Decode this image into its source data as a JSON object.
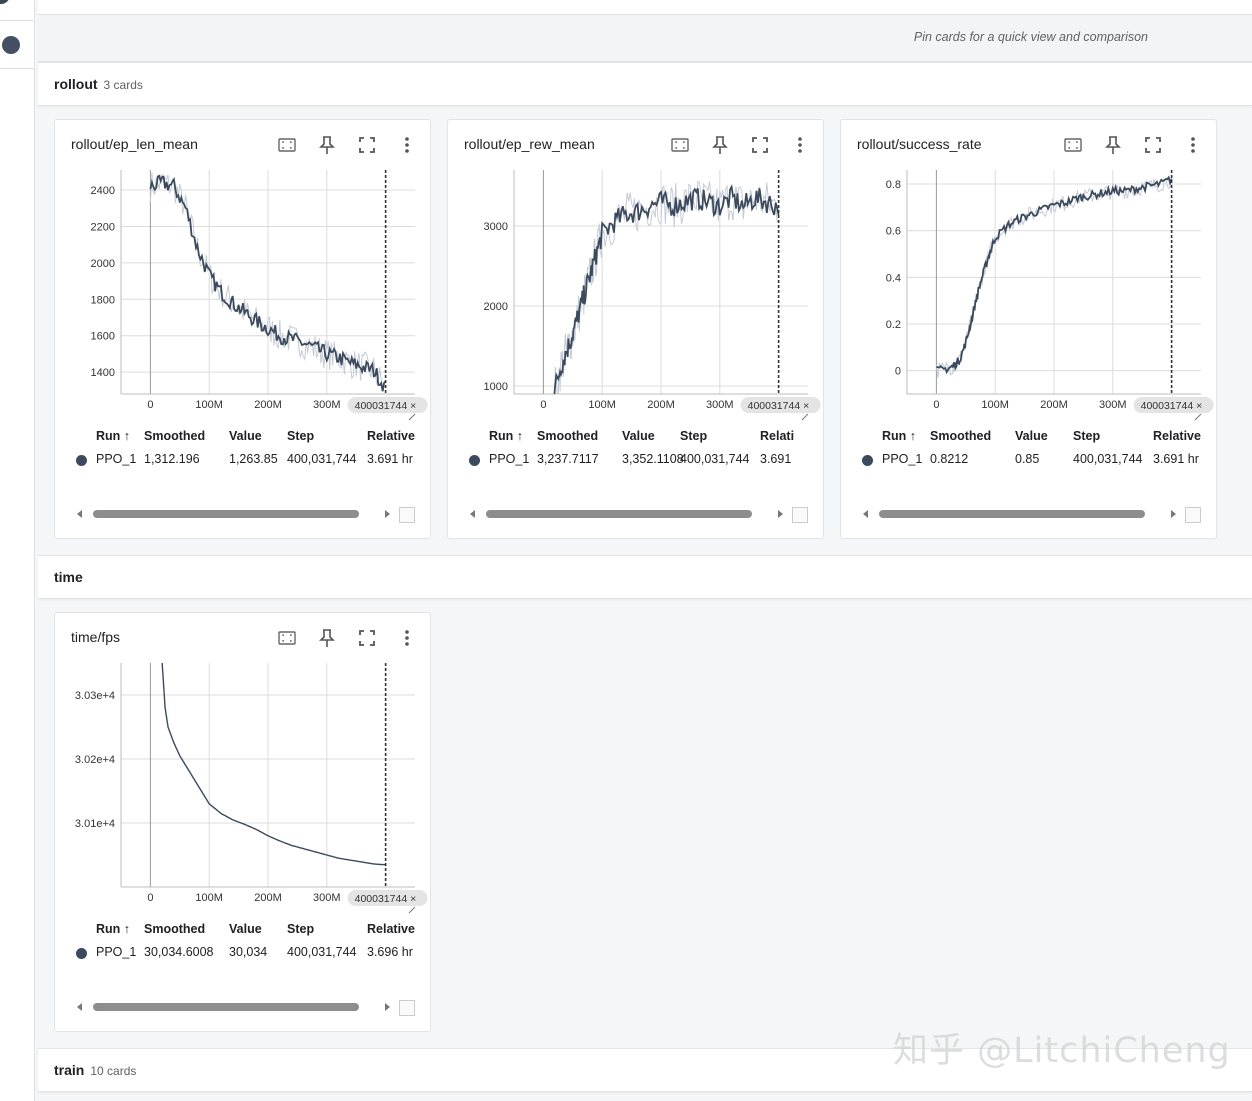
{
  "pin_hint": "Pin cards for a quick view and comparison",
  "groups": [
    {
      "name": "rollout",
      "count": "3 cards"
    },
    {
      "name": "time",
      "count": ""
    },
    {
      "name": "train",
      "count": "10 cards"
    }
  ],
  "table_headers": {
    "run": "Run ↑",
    "smoothed": "Smoothed",
    "value": "Value",
    "step": "Step",
    "relative": "Relative"
  },
  "step_chip": "400031744 ×",
  "x_ticks": [
    "0",
    "100M",
    "200M",
    "300M"
  ],
  "run_color": "#3c4a5e",
  "raw_color": "#c5cbd5",
  "cards": [
    {
      "title": "rollout/ep_len_mean",
      "row": {
        "run": "PPO_1",
        "smoothed": "1,312.196",
        "value": "1,263.85",
        "step": "400,031,744",
        "relative": "3.691 hr"
      },
      "y_ticks": [
        "2400",
        "2200",
        "2000",
        "1800",
        "1600",
        "1400"
      ]
    },
    {
      "title": "rollout/ep_rew_mean",
      "row": {
        "run": "PPO_1",
        "smoothed": "3,237.7117",
        "value": "3,352.1108",
        "step": "400,031,744",
        "relative": "3.691"
      },
      "relative_header": "Relati",
      "y_ticks": [
        "3000",
        "2000",
        "1000"
      ]
    },
    {
      "title": "rollout/success_rate",
      "row": {
        "run": "PPO_1",
        "smoothed": "0.8212",
        "value": "0.85",
        "step": "400,031,744",
        "relative": "3.691 hr"
      },
      "y_ticks": [
        "0.8",
        "0.6",
        "0.4",
        "0.2",
        "0"
      ]
    },
    {
      "title": "time/fps",
      "row": {
        "run": "PPO_1",
        "smoothed": "30,034.6008",
        "value": "30,034",
        "step": "400,031,744",
        "relative": "3.696 hr"
      },
      "y_ticks": [
        "3.03e+4",
        "3.02e+4",
        "3.01e+4"
      ]
    }
  ],
  "chart_data": [
    {
      "type": "line",
      "title": "rollout/ep_len_mean",
      "x_unit": "steps",
      "xlim": [
        -50000000,
        450000000
      ],
      "ylim": [
        1280,
        2510
      ],
      "x_ticks": [
        0,
        100000000,
        200000000,
        300000000
      ],
      "series": [
        {
          "name": "PPO_1",
          "x": [
            0,
            20000000,
            40000000,
            60000000,
            80000000,
            100000000,
            120000000,
            140000000,
            160000000,
            180000000,
            200000000,
            220000000,
            240000000,
            260000000,
            280000000,
            300000000,
            320000000,
            340000000,
            360000000,
            380000000,
            400031744
          ],
          "y": [
            2420,
            2440,
            2420,
            2300,
            2080,
            1930,
            1840,
            1780,
            1730,
            1680,
            1640,
            1600,
            1580,
            1560,
            1530,
            1500,
            1480,
            1450,
            1430,
            1410,
            1312
          ]
        }
      ]
    },
    {
      "type": "line",
      "title": "rollout/ep_rew_mean",
      "x_unit": "steps",
      "xlim": [
        -50000000,
        450000000
      ],
      "ylim": [
        900,
        3700
      ],
      "x_ticks": [
        0,
        100000000,
        200000000,
        300000000
      ],
      "series": [
        {
          "name": "PPO_1",
          "x": [
            17000000,
            30000000,
            40000000,
            50000000,
            60000000,
            70000000,
            80000000,
            90000000,
            100000000,
            120000000,
            140000000,
            160000000,
            180000000,
            200000000,
            220000000,
            240000000,
            260000000,
            280000000,
            300000000,
            320000000,
            340000000,
            360000000,
            380000000,
            400031744
          ],
          "y": [
            900,
            1250,
            1450,
            1650,
            1900,
            2150,
            2400,
            2650,
            2900,
            3050,
            3150,
            3180,
            3250,
            3300,
            3250,
            3300,
            3350,
            3300,
            3250,
            3350,
            3250,
            3350,
            3300,
            3237
          ]
        }
      ]
    },
    {
      "type": "line",
      "title": "rollout/success_rate",
      "x_unit": "steps",
      "xlim": [
        -50000000,
        450000000
      ],
      "ylim": [
        -0.1,
        0.86
      ],
      "x_ticks": [
        0,
        100000000,
        200000000,
        300000000
      ],
      "series": [
        {
          "name": "PPO_1",
          "x": [
            0,
            20000000,
            30000000,
            40000000,
            50000000,
            60000000,
            70000000,
            80000000,
            90000000,
            100000000,
            120000000,
            140000000,
            160000000,
            180000000,
            200000000,
            220000000,
            240000000,
            260000000,
            280000000,
            300000000,
            320000000,
            340000000,
            360000000,
            380000000,
            400031744
          ],
          "y": [
            0,
            0.01,
            0.02,
            0.05,
            0.12,
            0.22,
            0.33,
            0.42,
            0.5,
            0.57,
            0.62,
            0.65,
            0.67,
            0.69,
            0.71,
            0.72,
            0.74,
            0.75,
            0.76,
            0.77,
            0.77,
            0.78,
            0.79,
            0.8,
            0.8212
          ]
        }
      ]
    },
    {
      "type": "line",
      "title": "time/fps",
      "x_unit": "steps",
      "xlim": [
        -50000000,
        450000000
      ],
      "ylim": [
        30000,
        30350
      ],
      "x_ticks": [
        0,
        100000000,
        200000000,
        300000000
      ],
      "series": [
        {
          "name": "PPO_1",
          "x": [
            20000000,
            25000000,
            30000000,
            40000000,
            50000000,
            60000000,
            70000000,
            80000000,
            90000000,
            100000000,
            120000000,
            140000000,
            160000000,
            180000000,
            200000000,
            220000000,
            240000000,
            260000000,
            280000000,
            300000000,
            320000000,
            340000000,
            360000000,
            380000000,
            400031744
          ],
          "y": [
            30350,
            30280,
            30250,
            30225,
            30205,
            30190,
            30175,
            30160,
            30145,
            30130,
            30115,
            30105,
            30098,
            30090,
            30080,
            30072,
            30065,
            30060,
            30055,
            30050,
            30045,
            30042,
            30039,
            30036,
            30034.6
          ]
        }
      ]
    }
  ]
}
